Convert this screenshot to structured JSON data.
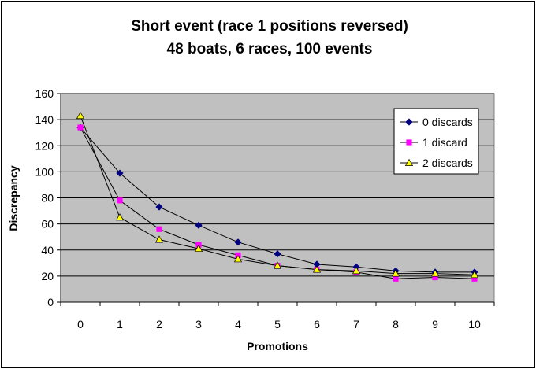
{
  "chart_data": {
    "type": "line",
    "title_lines": [
      "Short event (race 1 positions reversed)",
      "48 boats, 6 races, 100 events"
    ],
    "xlabel": "Promotions",
    "ylabel": "Discrepancy",
    "x": [
      0,
      1,
      2,
      3,
      4,
      5,
      6,
      7,
      8,
      9,
      10
    ],
    "ylim": [
      0,
      160
    ],
    "yticks": [
      0,
      20,
      40,
      60,
      80,
      100,
      120,
      140,
      160
    ],
    "grid": true,
    "plot_background": "#c0c0c0",
    "legend_position": "top-right",
    "series": [
      {
        "name": "0 discards",
        "marker": "diamond",
        "color": "#000080",
        "values": [
          134,
          99,
          73,
          59,
          46,
          37,
          29,
          27,
          24,
          23,
          23
        ]
      },
      {
        "name": "1 discard",
        "marker": "square",
        "color": "#ff00ff",
        "values": [
          134,
          78,
          56,
          44,
          36,
          28,
          25,
          23,
          18,
          19,
          18
        ]
      },
      {
        "name": "2 discards",
        "marker": "triangle",
        "color": "#ffff00",
        "values": [
          143,
          65,
          48,
          41,
          33,
          28,
          25,
          24,
          22,
          22,
          21
        ]
      }
    ]
  }
}
